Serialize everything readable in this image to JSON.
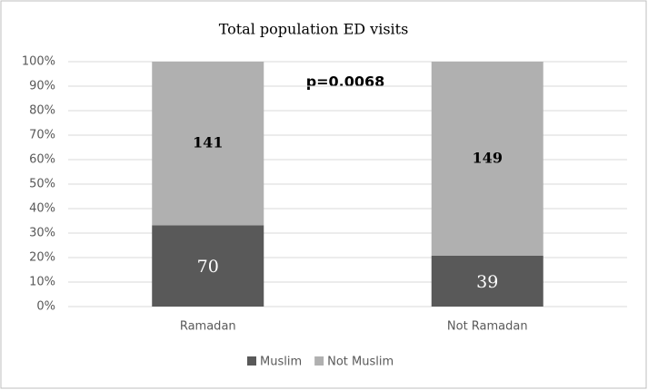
{
  "chart_data": {
    "type": "bar",
    "stacking": "percent",
    "title": "Total population ED visits",
    "annotation": "p=0.0068",
    "categories": [
      "Ramadan",
      "Not Ramadan"
    ],
    "series": [
      {
        "name": "Muslim",
        "color": "#595959",
        "label_color": "#ffffff",
        "values": [
          70,
          39
        ]
      },
      {
        "name": "Not Muslim",
        "color": "#b0b0b0",
        "label_color": "#000000",
        "values": [
          141,
          149
        ]
      }
    ],
    "ylim": [
      0,
      100
    ],
    "yticks": [
      {
        "value": 0,
        "label": "0%"
      },
      {
        "value": 10,
        "label": "10%"
      },
      {
        "value": 20,
        "label": "20%"
      },
      {
        "value": 30,
        "label": "30%"
      },
      {
        "value": 40,
        "label": "40%"
      },
      {
        "value": 50,
        "label": "50%"
      },
      {
        "value": 60,
        "label": "60%"
      },
      {
        "value": 70,
        "label": "70%"
      },
      {
        "value": 80,
        "label": "80%"
      },
      {
        "value": 90,
        "label": "90%"
      },
      {
        "value": 100,
        "label": "100%"
      }
    ],
    "grid": true,
    "legend": "bottom"
  }
}
